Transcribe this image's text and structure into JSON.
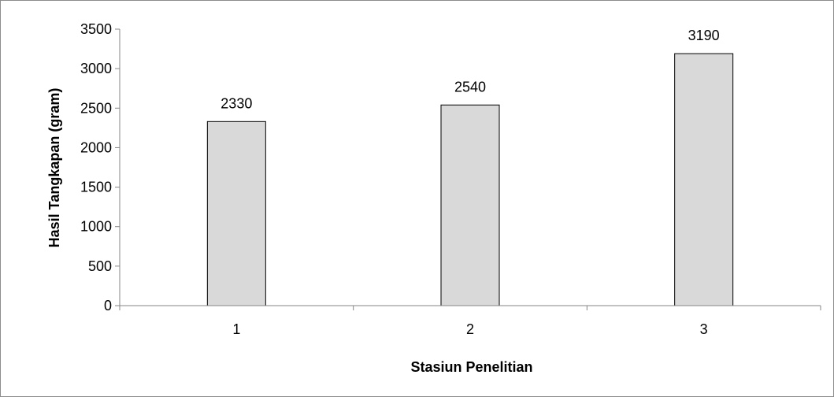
{
  "chart_data": {
    "type": "bar",
    "title": "",
    "xlabel": "Stasiun Penelitian",
    "ylabel": "Hasil Tangkapan (gram)",
    "categories": [
      "1",
      "2",
      "3"
    ],
    "values": [
      2330,
      2540,
      3190
    ],
    "data_labels": [
      "2330",
      "2540",
      "3190"
    ],
    "y_ticks": [
      "0",
      "500",
      "1000",
      "1500",
      "2000",
      "2500",
      "3000",
      "3500"
    ],
    "ylim": [
      0,
      3500
    ],
    "grid": false,
    "legend": "none",
    "bar_fill": "#d9d9d9",
    "bar_stroke": "#000000",
    "axis_color": "#868686"
  }
}
